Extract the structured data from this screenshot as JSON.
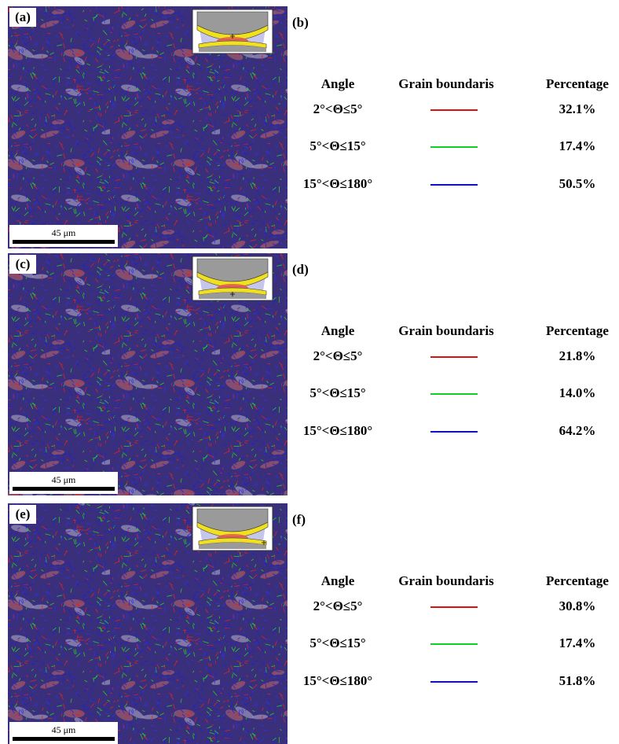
{
  "panels": [
    {
      "image_label": "(a)",
      "scale_bar": "45 μm",
      "table_label": "(b)",
      "headers": [
        "Angle",
        "Grain boundaris",
        "Percentage"
      ],
      "rows": [
        [
          "2°<Θ≤5°",
          "32.1%"
        ],
        [
          "5°<Θ≤15°",
          "17.4%"
        ],
        [
          "15°<Θ≤180°",
          "50.5%"
        ]
      ]
    },
    {
      "image_label": "(c)",
      "scale_bar": "45 μm",
      "table_label": "(d)",
      "headers": [
        "Angle",
        "Grain boundaris",
        "Percentage"
      ],
      "rows": [
        [
          "2°<Θ≤5°",
          "21.8%"
        ],
        [
          "5°<Θ≤15°",
          "14.0%"
        ],
        [
          "15°<Θ≤180°",
          "64.2%"
        ]
      ]
    },
    {
      "image_label": "(e)",
      "scale_bar": "45 μm",
      "table_label": "(f)",
      "headers": [
        "Angle",
        "Grain boundaris",
        "Percentage"
      ],
      "rows": [
        [
          "2°<Θ≤5°",
          "30.8%"
        ],
        [
          "5°<Θ≤15°",
          "17.4%"
        ],
        [
          "15°<Θ≤180°",
          "51.8%"
        ]
      ]
    }
  ]
}
